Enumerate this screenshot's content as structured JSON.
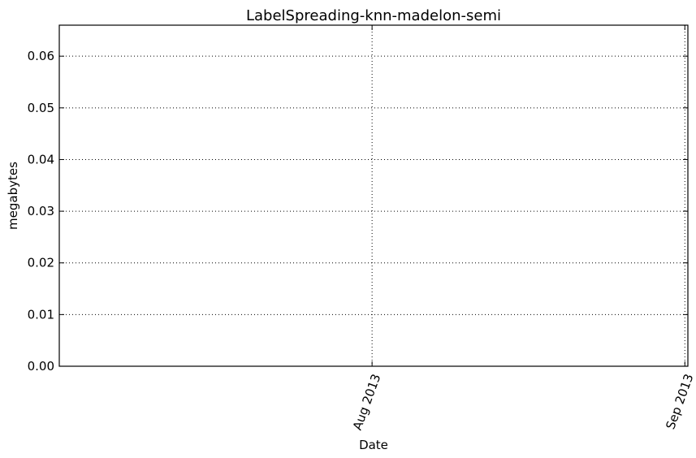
{
  "chart_data": {
    "type": "line",
    "title": "LabelSpreading-knn-madelon-semi",
    "xlabel": "Date",
    "ylabel": "megabytes",
    "x_type": "date",
    "xlim": [
      "2013-07-01",
      "2013-09-01"
    ],
    "ylim": [
      0,
      0.066
    ],
    "x_ticks": [
      {
        "date": "2013-08-01",
        "label": "Aug 2013"
      },
      {
        "date": "2013-09-01",
        "label": "Sep 2013"
      }
    ],
    "y_ticks": [
      {
        "value": 0.0,
        "label": "0.00"
      },
      {
        "value": 0.01,
        "label": "0.01"
      },
      {
        "value": 0.02,
        "label": "0.02"
      },
      {
        "value": 0.03,
        "label": "0.03"
      },
      {
        "value": 0.04,
        "label": "0.04"
      },
      {
        "value": 0.05,
        "label": "0.05"
      },
      {
        "value": 0.06,
        "label": "0.06"
      }
    ],
    "grid": true,
    "series": [
      {
        "x": [
          "2013-08-01",
          "2013-08-02",
          "2013-08-03"
        ],
        "y": [
          0,
          0,
          0
        ]
      }
    ],
    "colors": {
      "line": "#000000",
      "grid": "#000000"
    }
  }
}
